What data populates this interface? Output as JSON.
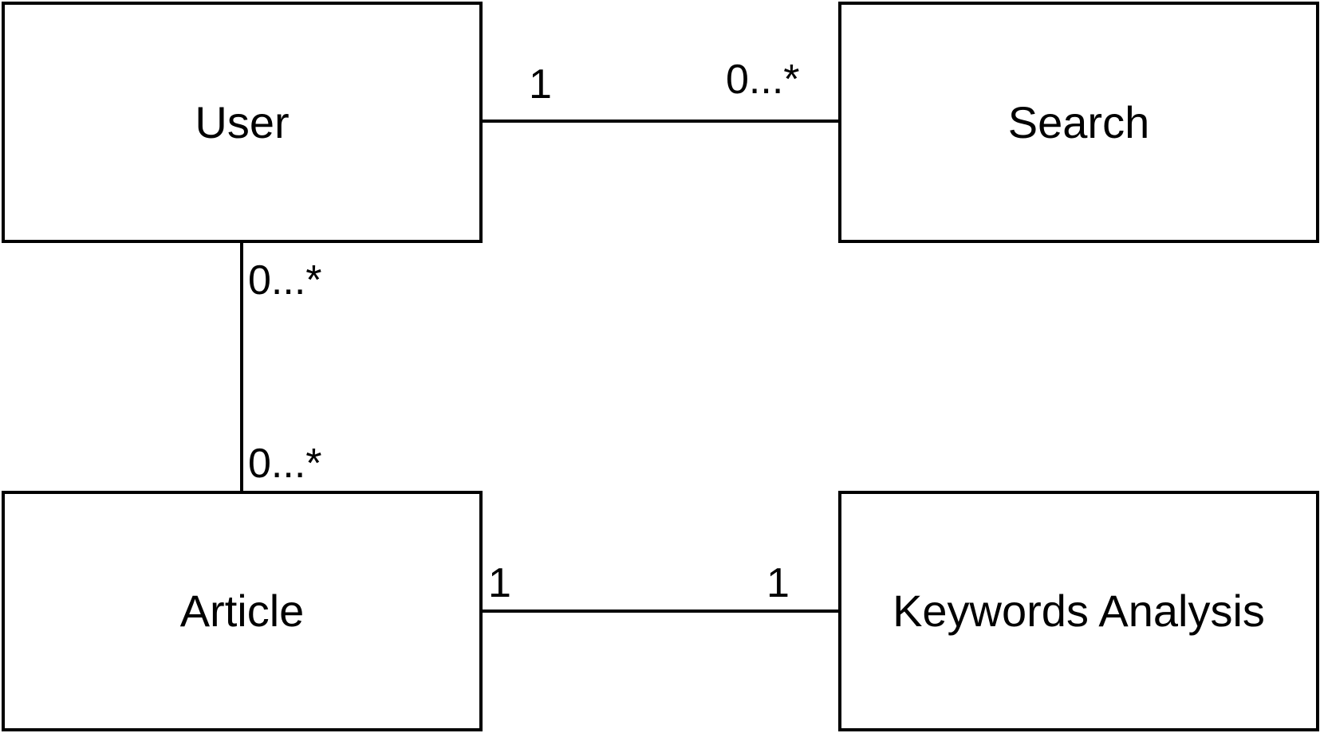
{
  "entities": {
    "user": "User",
    "search": "Search",
    "article": "Article",
    "keywords_analysis": "Keywords Analysis"
  },
  "associations": {
    "user_search": {
      "user_end": "1",
      "search_end": "0...*"
    },
    "user_article": {
      "user_end": "0...*",
      "article_end": "0...*"
    },
    "article_keywords": {
      "article_end": "1",
      "keywords_end": "1"
    }
  }
}
